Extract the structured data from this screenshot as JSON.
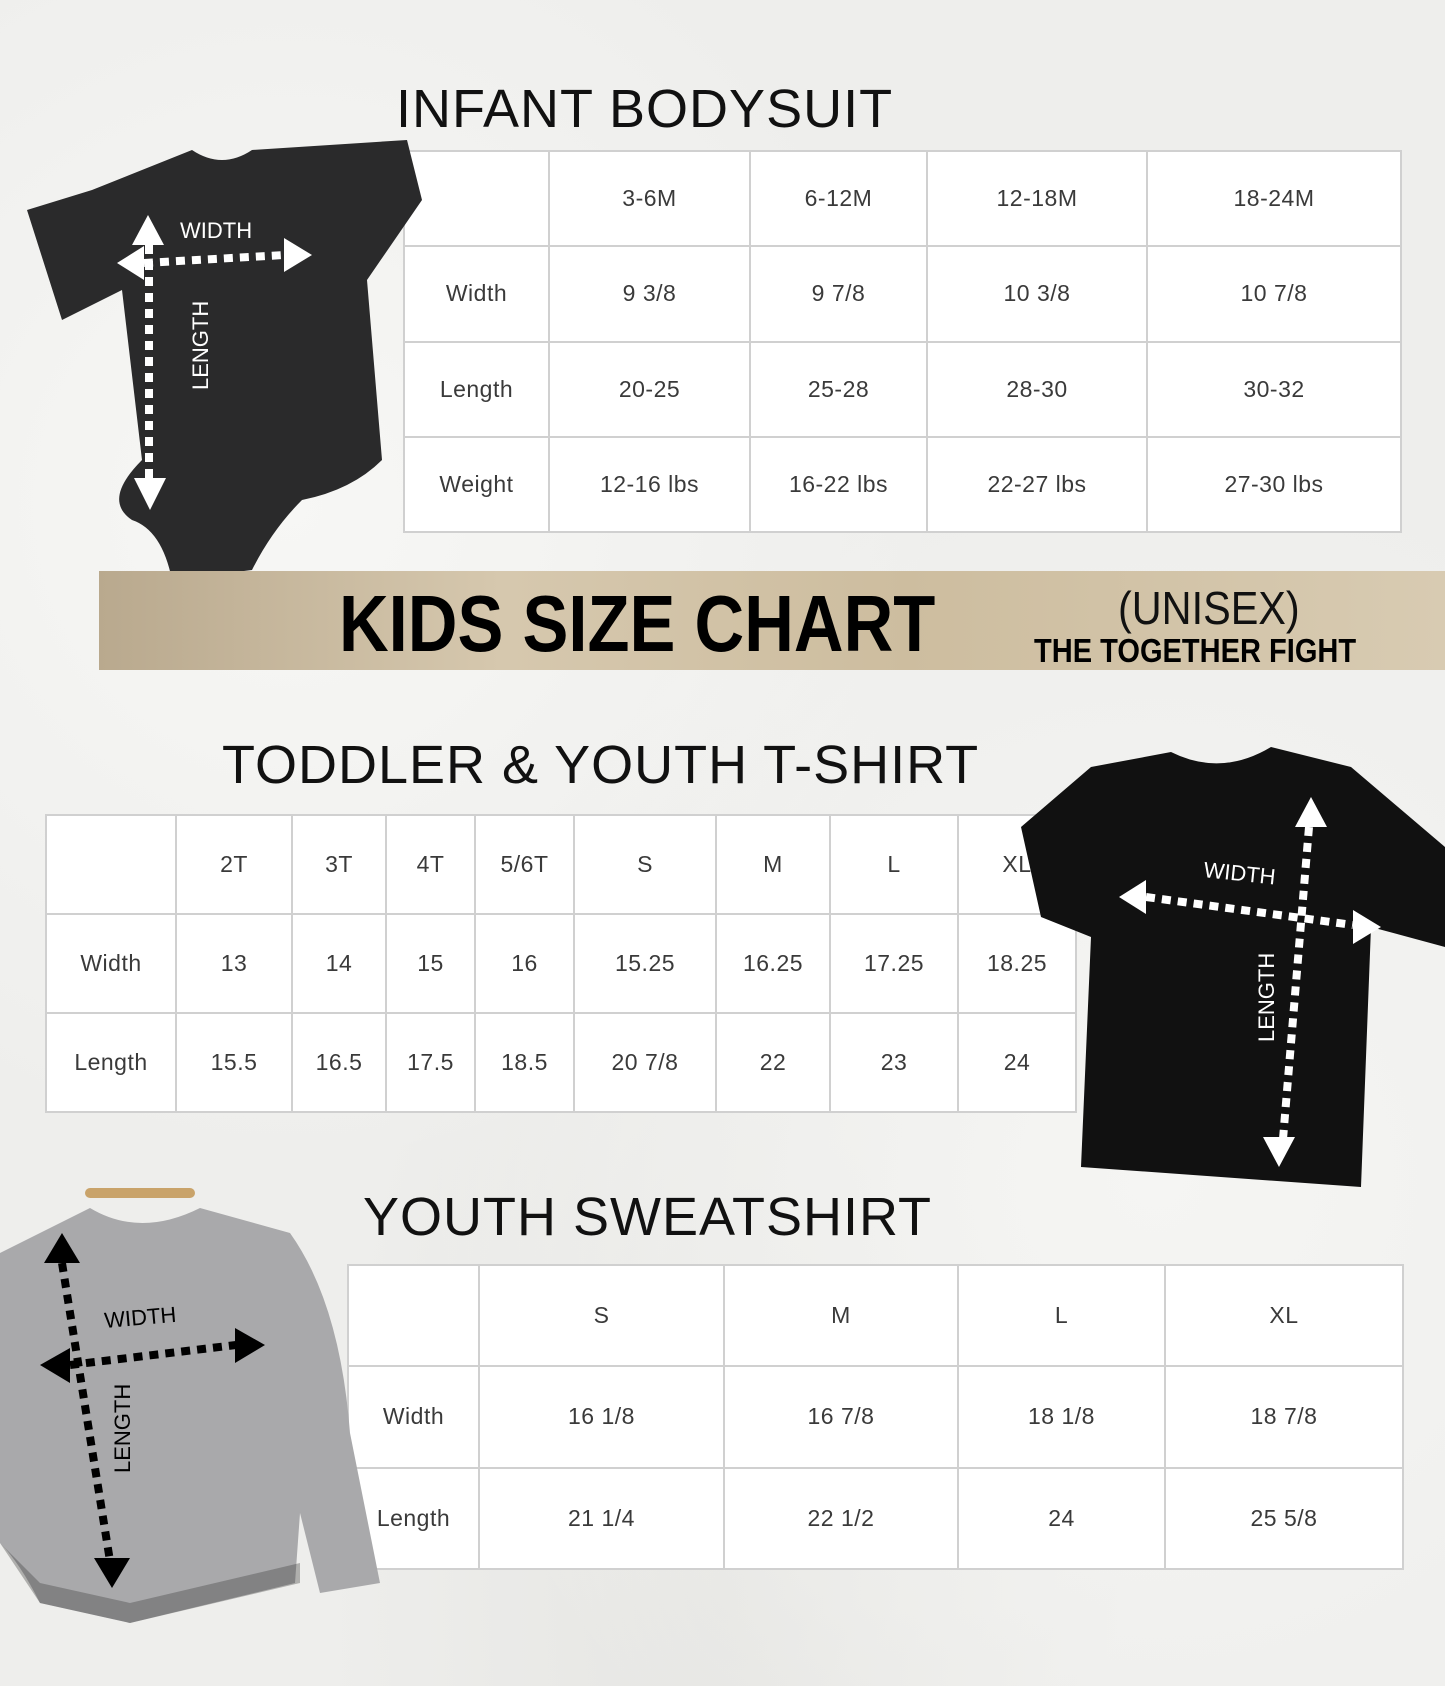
{
  "infant": {
    "title": "INFANT BODYSUIT",
    "width_label": "WIDTH",
    "length_label": "LENGTH",
    "headers": [
      "",
      "3-6M",
      "6-12M",
      "12-18M",
      "18-24M"
    ],
    "rows": [
      [
        "Width",
        "9 3/8",
        "9 7/8",
        "10 3/8",
        "10 7/8"
      ],
      [
        "Length",
        "20-25",
        "25-28",
        "28-30",
        "30-32"
      ],
      [
        "Weight",
        "12-16 lbs",
        "16-22 lbs",
        "22-27 lbs",
        "27-30 lbs"
      ]
    ]
  },
  "banner": {
    "title": "KIDS SIZE CHART",
    "subtitle": "(UNISEX)",
    "brand": "THE TOGETHER FIGHT"
  },
  "toddler": {
    "title": "TODDLER & YOUTH T-SHIRT",
    "width_label": "WIDTH",
    "length_label": "LENGTH",
    "headers": [
      "",
      "2T",
      "3T",
      "4T",
      "5/6T",
      "S",
      "M",
      "L",
      "XL"
    ],
    "rows": [
      [
        "Width",
        "13",
        "14",
        "15",
        "16",
        "15.25",
        "16.25",
        "17.25",
        "18.25"
      ],
      [
        "Length",
        "15.5",
        "16.5",
        "17.5",
        "18.5",
        "20 7/8",
        "22",
        "23",
        "24"
      ]
    ]
  },
  "sweatshirt": {
    "title": "YOUTH SWEATSHIRT",
    "width_label": "WIDTH",
    "length_label": "LENGTH",
    "headers": [
      "",
      "S",
      "M",
      "L",
      "XL"
    ],
    "rows": [
      [
        "Width",
        "16 1/8",
        "16 7/8",
        "18 1/8",
        "18 7/8"
      ],
      [
        "Length",
        "21 1/4",
        "22 1/2",
        "24",
        "25 5/8"
      ]
    ]
  }
}
